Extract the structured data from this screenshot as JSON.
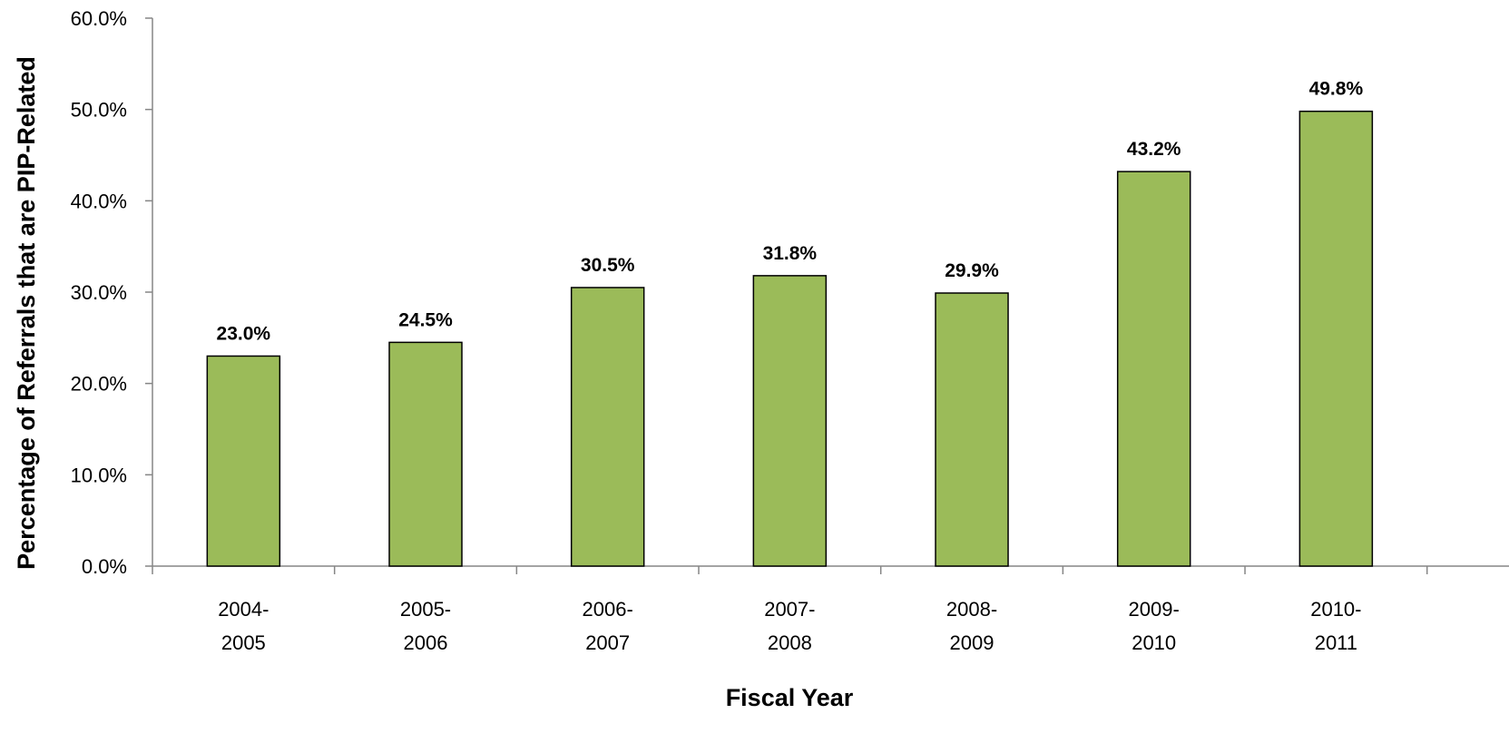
{
  "chart_data": {
    "type": "bar",
    "title": "",
    "xlabel": "Fiscal Year",
    "ylabel": "Percentage of Referrals that are PIP-Related",
    "categories": [
      [
        "2004-",
        "2005"
      ],
      [
        "2005-",
        "2006"
      ],
      [
        "2006-",
        "2007"
      ],
      [
        "2007-",
        "2008"
      ],
      [
        "2008-",
        "2009"
      ],
      [
        "2009-",
        "2010"
      ],
      [
        "2010-",
        "2011"
      ]
    ],
    "values": [
      23.0,
      24.5,
      30.5,
      31.8,
      29.9,
      43.2,
      49.8
    ],
    "data_labels": [
      "23.0%",
      "24.5%",
      "30.5%",
      "31.8%",
      "29.9%",
      "43.2%",
      "49.8%"
    ],
    "y_ticks": [
      "0.0%",
      "10.0%",
      "20.0%",
      "30.0%",
      "40.0%",
      "50.0%",
      "60.0%"
    ],
    "ylim": [
      0,
      60
    ],
    "grid": false,
    "legend": "none",
    "colors": {
      "bar_fill": "#9BBB59",
      "bar_stroke": "#000000",
      "axis": "#868686"
    }
  }
}
